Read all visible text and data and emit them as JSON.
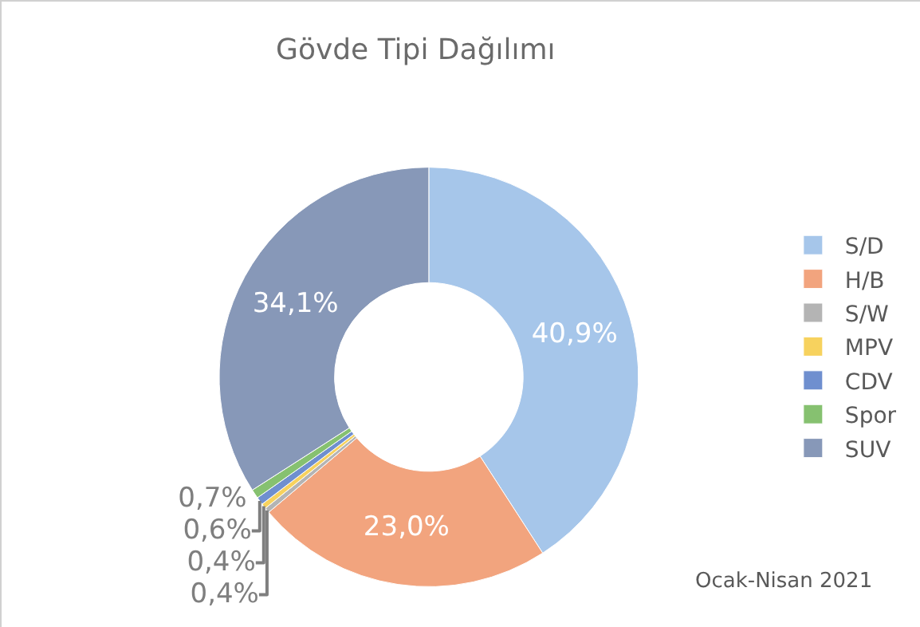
{
  "chart_data": {
    "type": "donut",
    "title": "Gövde Tipi Dağılımı",
    "categories": [
      "S/D",
      "H/B",
      "S/W",
      "MPV",
      "CDV",
      "Spor",
      "SUV"
    ],
    "values": [
      40.9,
      23.0,
      0.4,
      0.4,
      0.6,
      0.7,
      34.1
    ],
    "value_labels": [
      "40,9%",
      "23,0%",
      "0,4%",
      "0,4%",
      "0,6%",
      "0,7%",
      "34,1%"
    ],
    "colors": [
      "#a6c6ea",
      "#f2a47e",
      "#b4b4b4",
      "#f7d25e",
      "#6f8fcf",
      "#86c170",
      "#8798b8"
    ],
    "legend": "right",
    "annotations": [
      "Ocak-Nisan 2021"
    ]
  }
}
